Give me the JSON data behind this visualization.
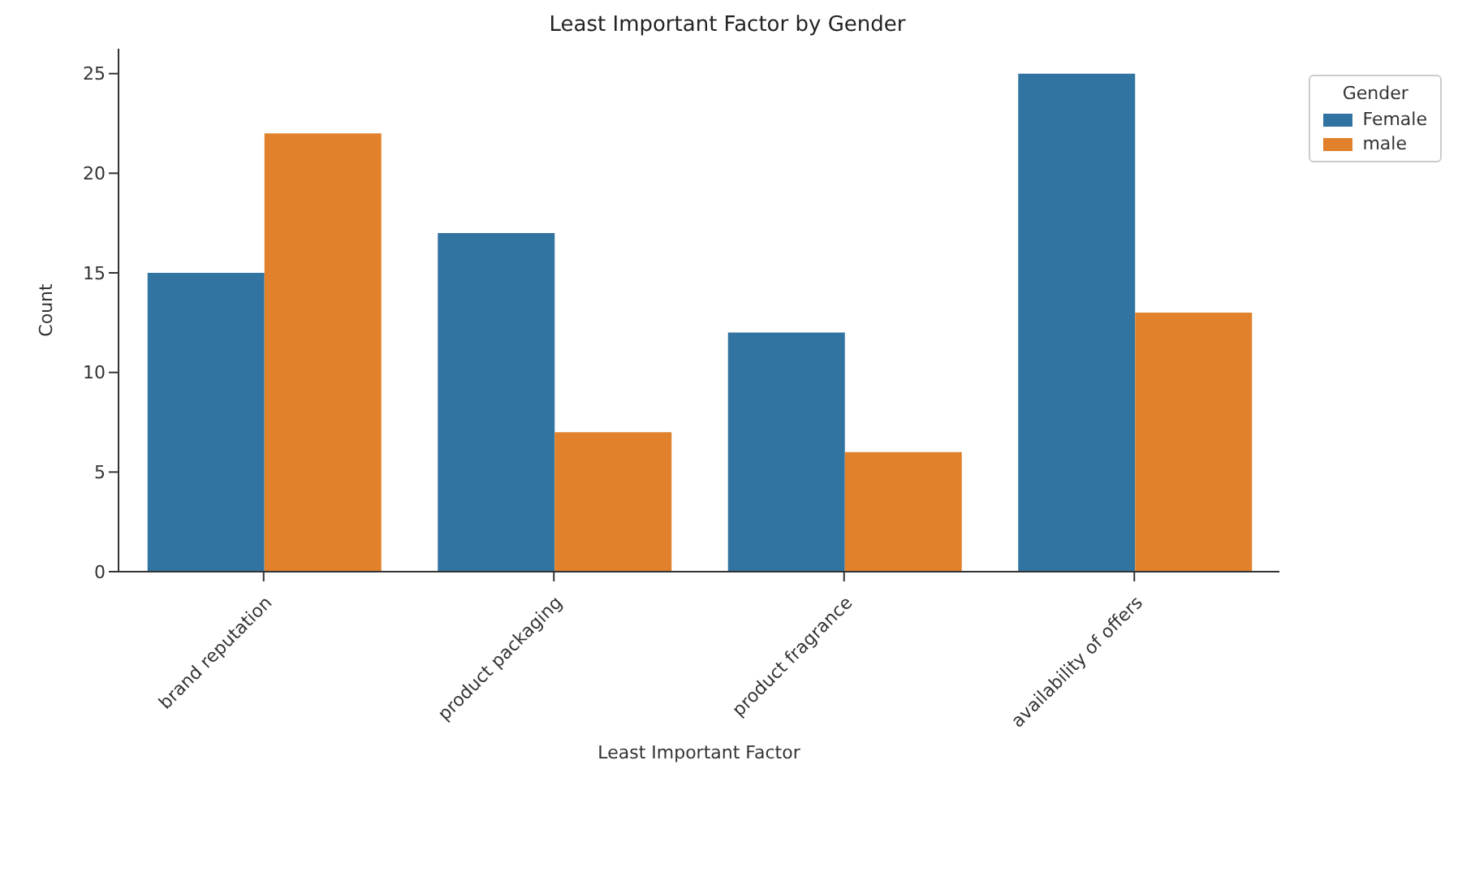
{
  "chart_data": {
    "type": "bar",
    "title": "Least Important Factor by Gender",
    "xlabel": "Least Important Factor",
    "ylabel": "Count",
    "legend_title": "Gender",
    "categories": [
      "brand reputation",
      "product packaging",
      "product fragrance",
      "availability of offers"
    ],
    "series": [
      {
        "name": "Female",
        "color": "#3274a1",
        "values": [
          15,
          17,
          12,
          25
        ]
      },
      {
        "name": "male",
        "color": "#e1812c",
        "values": [
          22,
          7,
          6,
          13
        ]
      }
    ],
    "ylim": [
      0,
      26.25
    ],
    "yticks": [
      0,
      5,
      10,
      15,
      20,
      25
    ],
    "grid": false,
    "legend": "top right"
  }
}
